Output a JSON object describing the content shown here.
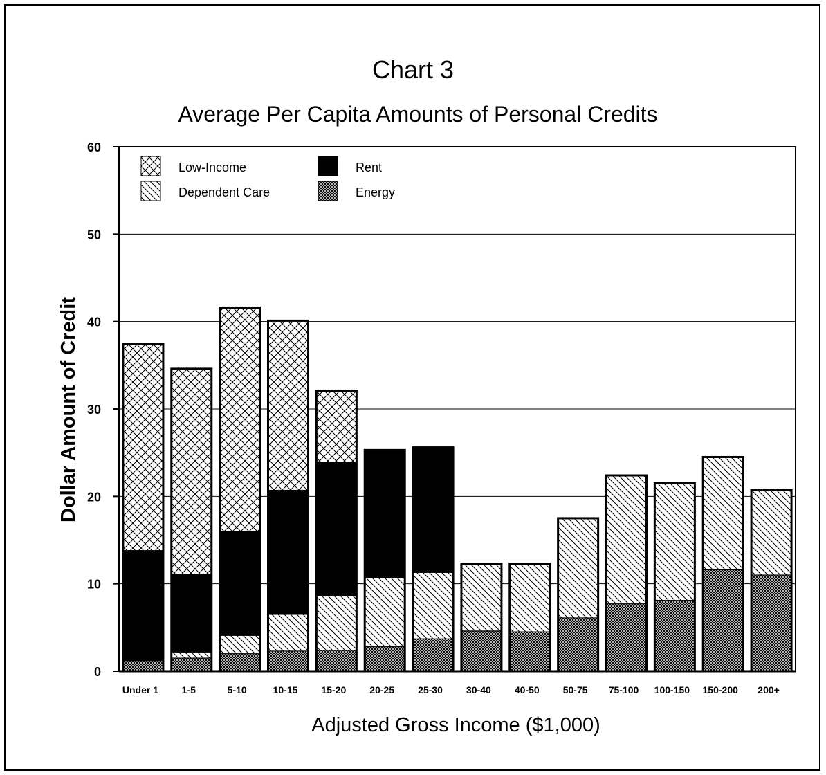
{
  "chart_data": {
    "type": "bar",
    "stacked": true,
    "title": "Chart 3",
    "subtitle": "Average Per Capita Amounts of Personal Credits",
    "xlabel": "Adjusted Gross Income ($1,000)",
    "ylabel": "Dollar Amount of Credit",
    "ylim": [
      0,
      60
    ],
    "yticks": [
      "0",
      "10",
      "20",
      "30",
      "40",
      "50",
      "60"
    ],
    "grid": true,
    "legend_position": "top-left",
    "categories": [
      "Under 1",
      "1-5",
      "5-10",
      "10-15",
      "15-20",
      "20-25",
      "25-30",
      "30-40",
      "40-50",
      "50-75",
      "75-100",
      "100-150",
      "150-200",
      "200+"
    ],
    "series": [
      {
        "name": "Energy",
        "pattern": "dense-dots",
        "values": [
          1.2,
          1.5,
          2.0,
          2.3,
          2.4,
          2.8,
          3.7,
          4.6,
          4.5,
          6.1,
          7.7,
          8.1,
          11.6,
          11.0
        ]
      },
      {
        "name": "Dependent Care",
        "pattern": "diagonal-hatch",
        "values": [
          0,
          0.7,
          2.1,
          4.2,
          6.2,
          7.9,
          7.6,
          7.7,
          7.8,
          11.4,
          14.7,
          13.4,
          12.9,
          9.7
        ]
      },
      {
        "name": "Rent",
        "pattern": "solid-black",
        "values": [
          12.6,
          8.9,
          11.9,
          14.2,
          15.3,
          14.6,
          14.3,
          0,
          0,
          0,
          0,
          0,
          0,
          0
        ]
      },
      {
        "name": "Low-Income",
        "pattern": "crosshatch",
        "values": [
          23.6,
          23.5,
          25.6,
          19.4,
          8.2,
          0,
          0,
          0,
          0,
          0,
          0,
          0,
          0,
          0
        ]
      }
    ],
    "legend": [
      {
        "name": "Low-Income",
        "pattern": "crosshatch"
      },
      {
        "name": "Rent",
        "pattern": "solid-black"
      },
      {
        "name": "Dependent Care",
        "pattern": "diagonal-hatch"
      },
      {
        "name": "Energy",
        "pattern": "dense-dots"
      }
    ],
    "colors": {
      "ink": "#000000",
      "background": "#ffffff"
    }
  }
}
